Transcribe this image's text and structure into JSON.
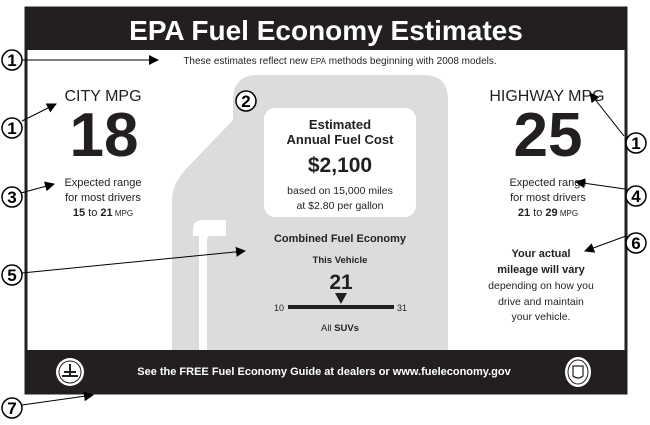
{
  "label": {
    "title": "EPA Fuel Economy Estimates",
    "subtitle_pre": "These estimates reflect new ",
    "subtitle_epa": "EPA",
    "subtitle_post": " methods beginning with 2008 models.",
    "city": {
      "heading": "CITY MPG",
      "value": "18",
      "range_line1": "Expected range",
      "range_line2": "for most drivers",
      "range_low": "15",
      "range_to": " to ",
      "range_high": "21",
      "range_unit": " MPG"
    },
    "highway": {
      "heading": "HIGHWAY MPG",
      "value": "25",
      "range_line1": "Expected range",
      "range_line2": "for most drivers",
      "range_low": "21",
      "range_to": " to ",
      "range_high": "29",
      "range_unit": " MPG"
    },
    "annual_cost": {
      "heading_line1": "Estimated",
      "heading_line2": "Annual Fuel Cost",
      "value": "$2,100",
      "basis_line1": "based on 15,000 miles",
      "basis_line2": "at $2.80 per gallon"
    },
    "combined": {
      "heading": "Combined Fuel Economy",
      "this_vehicle": "This Vehicle",
      "value": "21",
      "scale_min": "10",
      "scale_max": "31",
      "class_pre": "All ",
      "class_name": "SUVs"
    },
    "disclaimer": {
      "bold_line1": "Your actual",
      "bold_line2": "mileage will vary",
      "line3": "depending on how you",
      "line4": "drive and maintain",
      "line5": "your vehicle."
    },
    "footer": "See the FREE Fuel Economy Guide at dealers or www.fueleconomy.gov"
  },
  "callouts": [
    "1",
    "1",
    "3",
    "2",
    "1",
    "4",
    "5",
    "6",
    "7"
  ],
  "colors": {
    "ink": "#231f20",
    "pump_gray": "#dcdcdc",
    "white": "#ffffff"
  }
}
